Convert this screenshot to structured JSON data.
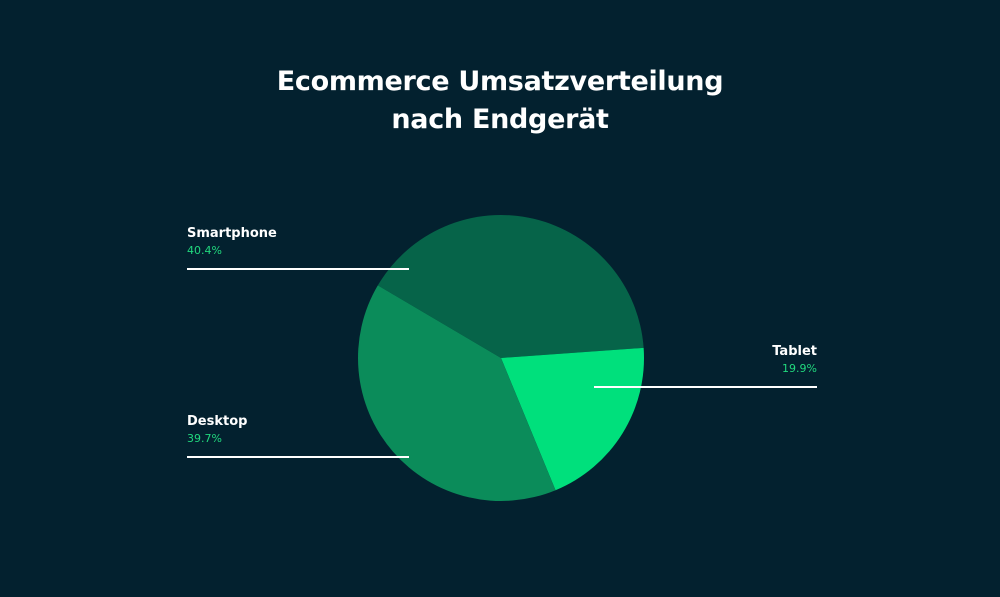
{
  "chart_data": {
    "type": "pie",
    "title": "Ecommerce Umsatzverteilung nach Endgerät",
    "title_lines": [
      "Ecommerce Umsatzverteilung",
      "nach Endgerät"
    ],
    "unit": "%",
    "slices": [
      {
        "label": "Smartphone",
        "value": 40.4,
        "value_label": "40.4%",
        "color": "#066449"
      },
      {
        "label": "Tablet",
        "value": 19.9,
        "value_label": "19.9%",
        "color": "#00e07c"
      },
      {
        "label": "Desktop",
        "value": 39.7,
        "value_label": "39.7%",
        "color": "#0b8c5a"
      }
    ],
    "legend": "none",
    "labels_placement": "outside with leader lines"
  },
  "colors": {
    "background": "#03212f",
    "text": "#ffffff",
    "value_text": "#21d97e",
    "leader_line": "#ffffff"
  }
}
